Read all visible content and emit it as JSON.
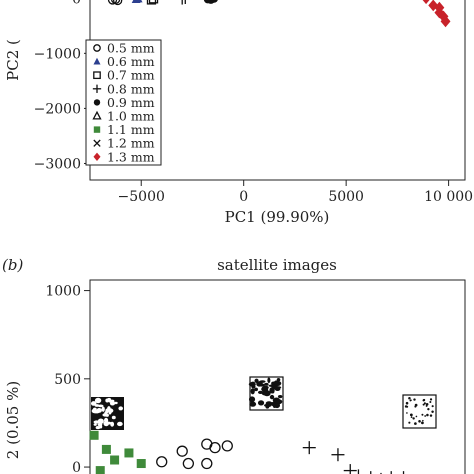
{
  "chart_data": [
    {
      "type": "scatter",
      "panel_label": "",
      "title": "",
      "xlabel": "PC1 (99.90%)",
      "ylabel": "PC2 (",
      "xlim": [
        -7500,
        10800
      ],
      "ylim": [
        -3300,
        150
      ],
      "x_ticks": [
        -5000,
        0,
        5000,
        10000
      ],
      "x_tick_labels": [
        "−5000",
        "0",
        "5000",
        "10 000"
      ],
      "y_ticks": [
        0,
        -1000,
        -2000,
        -3000
      ],
      "y_tick_labels": [
        "0",
        "−1000",
        "−2000",
        "−3000"
      ],
      "legend_position": "bottom-left",
      "series": [
        {
          "name": "0.5 mm",
          "marker": "circle-open",
          "color": "#111111",
          "points": [
            [
              -6400,
              -30
            ],
            [
              -6250,
              -20
            ],
            [
              -6150,
              -40
            ]
          ]
        },
        {
          "name": "0.6 mm",
          "marker": "triangle-filled",
          "color": "#2c3f8f",
          "points": [
            [
              -5250,
              -20
            ],
            [
              -5150,
              -10
            ]
          ]
        },
        {
          "name": "0.7 mm",
          "marker": "square-open",
          "color": "#111111",
          "points": [
            [
              -4500,
              -30
            ],
            [
              -4400,
              -10
            ]
          ]
        },
        {
          "name": "0.8 mm",
          "marker": "plus",
          "color": "#111111",
          "points": [
            [
              -3000,
              -20
            ],
            [
              -2850,
              -10
            ]
          ]
        },
        {
          "name": "0.9 mm",
          "marker": "circle-filled",
          "color": "#111111",
          "points": [
            [
              -1750,
              -20
            ],
            [
              -1600,
              -30
            ],
            [
              -1450,
              -10
            ]
          ]
        },
        {
          "name": "1.0 mm",
          "marker": "triangle-open",
          "color": "#111111",
          "points": []
        },
        {
          "name": "1.1 mm",
          "marker": "square-filled",
          "color": "#3f8a3a",
          "points": []
        },
        {
          "name": "1.2 mm",
          "marker": "x",
          "color": "#111111",
          "points": []
        },
        {
          "name": "1.3 mm",
          "marker": "diamond-filled",
          "color": "#c8222a",
          "points": [
            [
              8900,
              0
            ],
            [
              9250,
              -130
            ],
            [
              9550,
              -260
            ],
            [
              9750,
              -330
            ],
            [
              9850,
              -420
            ],
            [
              9550,
              -170
            ]
          ]
        }
      ]
    },
    {
      "type": "scatter",
      "panel_label": "(b)",
      "title": "satellite images",
      "xlabel": "",
      "ylabel": "2 (0.05 %)",
      "ylim": [
        -130,
        1060
      ],
      "y_ticks": [
        1000,
        500,
        0
      ],
      "y_tick_labels": [
        "1000",
        "500",
        "0"
      ],
      "series": [
        {
          "name": "",
          "marker": "square-filled",
          "color": "#3f8a3a",
          "points": [
            [
              -7300,
              180
            ],
            [
              -6700,
              100
            ],
            [
              -7000,
              -20
            ],
            [
              -6300,
              40
            ],
            [
              -5600,
              80
            ],
            [
              -5000,
              20
            ]
          ]
        },
        {
          "name": "",
          "marker": "circle-open",
          "color": "#111111",
          "points": [
            [
              -4000,
              30
            ],
            [
              -3000,
              90
            ],
            [
              -2700,
              20
            ],
            [
              -1800,
              20
            ],
            [
              -1800,
              130
            ],
            [
              -1400,
              110
            ],
            [
              -800,
              120
            ],
            [
              -2300,
              -130
            ]
          ]
        },
        {
          "name": "",
          "marker": "plus",
          "color": "#111111",
          "points": [
            [
              3200,
              110
            ],
            [
              4600,
              70
            ],
            [
              5200,
              -20
            ],
            [
              5600,
              -50
            ],
            [
              6200,
              -60
            ],
            [
              6700,
              -70
            ],
            [
              7200,
              -60
            ],
            [
              7800,
              -60
            ]
          ]
        }
      ]
    }
  ]
}
